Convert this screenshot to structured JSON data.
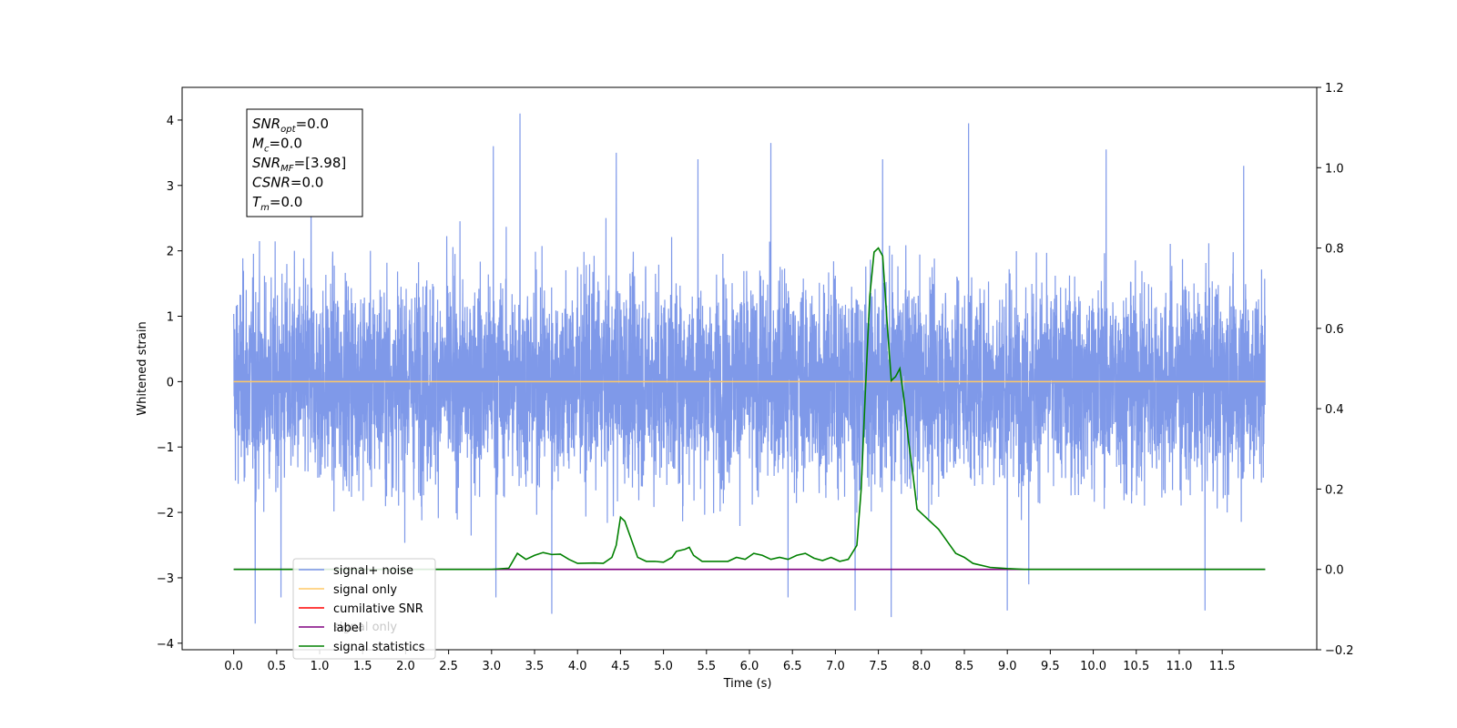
{
  "chart_data": {
    "type": "line",
    "xlabel": "Time (s)",
    "ylabel": "Whitened strain",
    "xlim": [
      -0.6,
      12.6
    ],
    "ylim": [
      -4.1,
      4.5
    ],
    "ylim_right": [
      -0.2,
      1.2
    ],
    "x_ticks": [
      "0.0",
      "0.5",
      "1.0",
      "1.5",
      "2.0",
      "2.5",
      "3.0",
      "3.5",
      "4.0",
      "4.5",
      "5.0",
      "5.5",
      "6.0",
      "6.5",
      "7.0",
      "7.5",
      "8.0",
      "8.5",
      "9.0",
      "9.5",
      "10.0",
      "10.5",
      "11.0",
      "11.5"
    ],
    "y_ticks": [
      "4",
      "3",
      "2",
      "1",
      "0",
      "−1",
      "−2",
      "−3",
      "−4"
    ],
    "y_ticks_right": [
      "1.2",
      "1.0",
      "0.8",
      "0.6",
      "0.4",
      "0.2",
      "0.0",
      "−0.2"
    ],
    "grid": false,
    "legend_position": "lower-left",
    "legend": [
      {
        "label": "signal+ noise",
        "color": "#7894e8"
      },
      {
        "label": "signal only",
        "color": "#ffc966"
      },
      {
        "label": "cumilative SNR",
        "color": "#ff0000"
      },
      {
        "label": "label",
        "color": "#800080"
      },
      {
        "label": "signal statistics",
        "color": "#008000"
      }
    ],
    "legend_hidden_text": "signal only",
    "annotation": [
      {
        "base": "SNR",
        "sub": "opt",
        "value": "=0.0"
      },
      {
        "base": "M",
        "sub": "c",
        "value": "=0.0"
      },
      {
        "base": "SNR",
        "sub": "MF",
        "value": "=[3.98]"
      },
      {
        "base": "CSNR",
        "sub": "",
        "value": "=0.0"
      },
      {
        "base": "T",
        "sub": "m",
        "value": "=0.0"
      }
    ],
    "series": [
      {
        "name": "signal+ noise",
        "axis": "left",
        "style": "noise",
        "color": "#7894e8",
        "x_range": [
          0.0,
          12.0
        ],
        "envelope_typical": [
          -1.9,
          2.0
        ],
        "peaks": [
          {
            "x": 0.25,
            "y": -3.7
          },
          {
            "x": 0.55,
            "y": -3.3
          },
          {
            "x": 0.9,
            "y": 3.2
          },
          {
            "x": 3.02,
            "y": 3.6
          },
          {
            "x": 3.33,
            "y": 4.1
          },
          {
            "x": 3.05,
            "y": -3.3
          },
          {
            "x": 3.7,
            "y": -3.55
          },
          {
            "x": 4.45,
            "y": 3.5
          },
          {
            "x": 5.4,
            "y": 3.4
          },
          {
            "x": 6.25,
            "y": 3.65
          },
          {
            "x": 6.45,
            "y": -3.3
          },
          {
            "x": 7.55,
            "y": 3.4
          },
          {
            "x": 7.23,
            "y": -3.5
          },
          {
            "x": 7.65,
            "y": -3.6
          },
          {
            "x": 8.55,
            "y": 3.95
          },
          {
            "x": 9.0,
            "y": -3.5
          },
          {
            "x": 9.25,
            "y": -3.1
          },
          {
            "x": 10.15,
            "y": 3.55
          },
          {
            "x": 11.3,
            "y": -3.5
          },
          {
            "x": 11.75,
            "y": 3.3
          }
        ]
      },
      {
        "name": "signal only",
        "axis": "left",
        "color": "#ffc966",
        "x": [
          0.0,
          12.0
        ],
        "y": [
          0.0,
          0.0
        ]
      },
      {
        "name": "label",
        "axis": "right",
        "color": "#800080",
        "x": [
          0.0,
          12.0
        ],
        "y": [
          0.0,
          0.0
        ]
      },
      {
        "name": "signal statistics",
        "axis": "right",
        "color": "#008000",
        "x": [
          0.0,
          3.0,
          3.2,
          3.3,
          3.4,
          3.5,
          3.6,
          3.7,
          3.8,
          3.9,
          4.0,
          4.2,
          4.3,
          4.4,
          4.45,
          4.5,
          4.55,
          4.6,
          4.7,
          4.8,
          4.9,
          5.0,
          5.1,
          5.15,
          5.25,
          5.3,
          5.35,
          5.45,
          5.6,
          5.75,
          5.85,
          5.95,
          6.05,
          6.15,
          6.25,
          6.35,
          6.45,
          6.55,
          6.65,
          6.75,
          6.85,
          6.95,
          7.05,
          7.15,
          7.25,
          7.3,
          7.35,
          7.4,
          7.45,
          7.5,
          7.55,
          7.6,
          7.65,
          7.7,
          7.75,
          7.8,
          7.85,
          7.9,
          7.95,
          8.0,
          8.05,
          8.1,
          8.15,
          8.2,
          8.3,
          8.4,
          8.5,
          8.6,
          8.8,
          9.0,
          9.2,
          12.0
        ],
        "y": [
          0.0,
          0.0,
          0.003,
          0.04,
          0.025,
          0.035,
          0.042,
          0.037,
          0.038,
          0.025,
          0.015,
          0.016,
          0.015,
          0.03,
          0.06,
          0.13,
          0.12,
          0.09,
          0.03,
          0.02,
          0.02,
          0.018,
          0.03,
          0.045,
          0.05,
          0.055,
          0.035,
          0.02,
          0.02,
          0.02,
          0.03,
          0.025,
          0.04,
          0.035,
          0.025,
          0.03,
          0.025,
          0.035,
          0.04,
          0.028,
          0.022,
          0.03,
          0.02,
          0.025,
          0.06,
          0.2,
          0.45,
          0.68,
          0.79,
          0.8,
          0.78,
          0.62,
          0.47,
          0.48,
          0.5,
          0.42,
          0.32,
          0.24,
          0.15,
          0.14,
          0.13,
          0.12,
          0.11,
          0.1,
          0.07,
          0.04,
          0.03,
          0.015,
          0.005,
          0.002,
          0.0,
          0.0
        ]
      }
    ]
  }
}
